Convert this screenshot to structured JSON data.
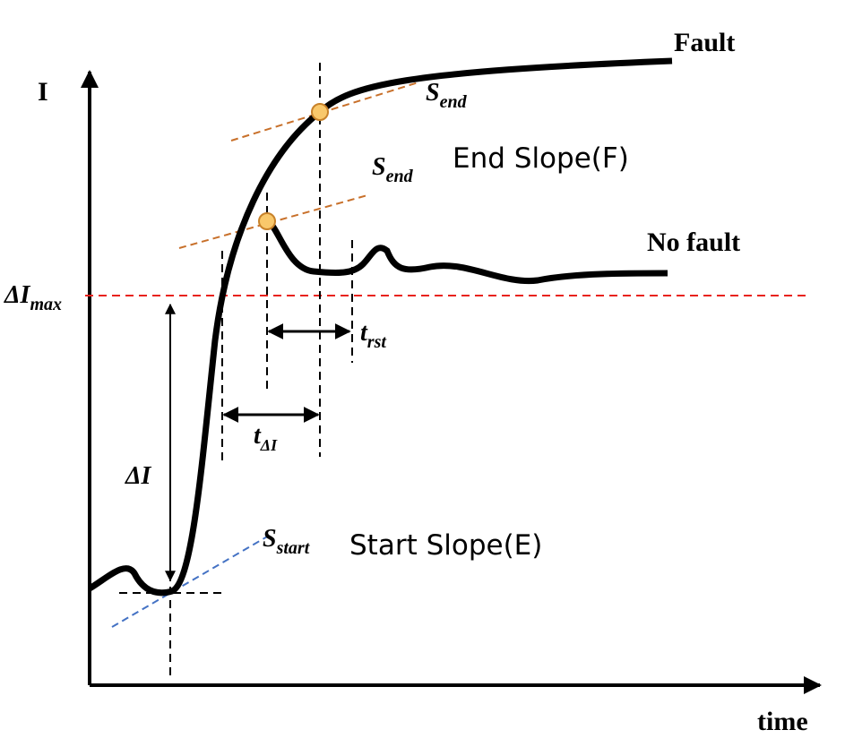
{
  "y_axis_label": "I",
  "x_axis_label": "time",
  "curves": {
    "fault": "Fault",
    "no_fault": "No fault"
  },
  "end_slope_label": "End Slope(F)",
  "start_slope_label": "Start Slope(E)",
  "s_end_upper": {
    "main": "S",
    "sub": "end"
  },
  "s_end_lower": {
    "main": "S",
    "sub": "end"
  },
  "s_start": {
    "main": "S",
    "sub": "start"
  },
  "delta_i_max": {
    "main": "ΔI",
    "sub": "max"
  },
  "delta_i": "ΔI",
  "t_delta_i": {
    "main": "t",
    "sub": "ΔI"
  },
  "t_rst": {
    "main": "t",
    "sub": "rst"
  }
}
